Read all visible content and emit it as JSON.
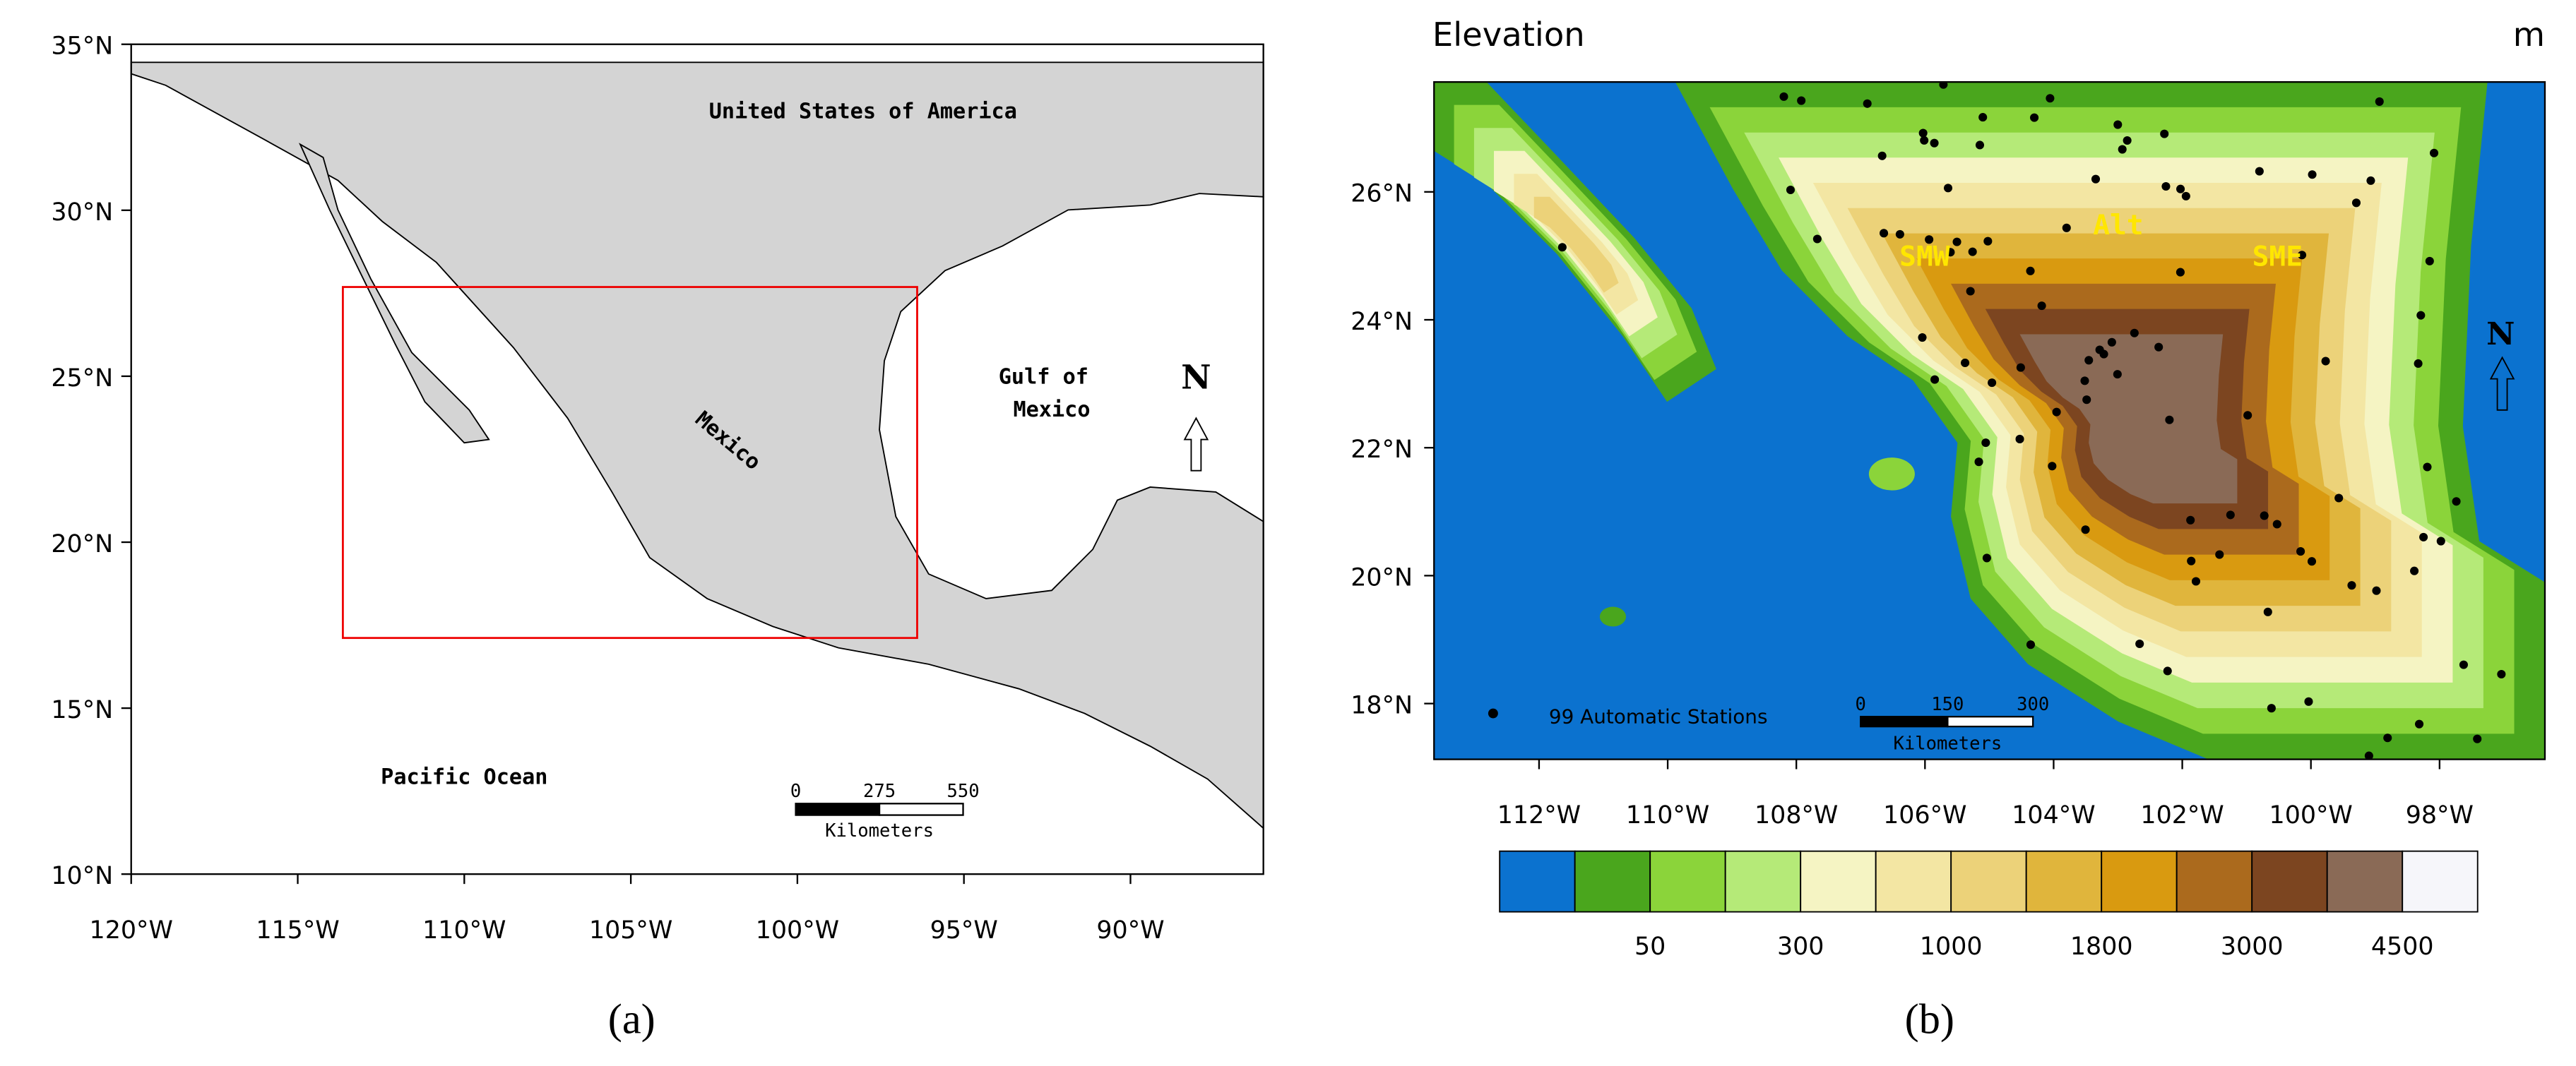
{
  "panel_a": {
    "label": "(a)",
    "lat_ticks": [
      "35°N",
      "30°N",
      "25°N",
      "20°N",
      "15°N",
      "10°N"
    ],
    "lon_ticks": [
      "120°W",
      "115°W",
      "110°W",
      "105°W",
      "100°W",
      "95°W",
      "90°W"
    ],
    "places": {
      "usa": "United States of America",
      "gulf": [
        "Gulf of",
        "Mexico"
      ],
      "mexico": "Mexico",
      "pacific": "Pacific Ocean"
    },
    "north": "N",
    "scale_bar": {
      "ticks": [
        "0",
        "275",
        "550"
      ],
      "unit": "Kilometers"
    }
  },
  "panel_b": {
    "label": "(b)",
    "title": "Elevation",
    "unit": "m",
    "lat_ticks": [
      "26°N",
      "24°N",
      "22°N",
      "20°N",
      "18°N"
    ],
    "lon_ticks": [
      "112°W",
      "110°W",
      "108°W",
      "106°W",
      "104°W",
      "102°W",
      "100°W",
      "98°W"
    ],
    "regions": [
      "SMW",
      "Alt",
      "SME"
    ],
    "north": "N",
    "stations": "99 Automatic Stations",
    "scale_bar": {
      "ticks": [
        "0",
        "150",
        "300"
      ],
      "unit": "Kilometers"
    },
    "colorbar": {
      "colors": [
        "#0b72cf",
        "#4aa61d",
        "#8bd43a",
        "#b5ea78",
        "#f5f4c3",
        "#f3e6a3",
        "#ecd279",
        "#e0b53c",
        "#d99a10",
        "#ab6a1d",
        "#7c4520",
        "#8a6a56",
        "#f6f6fa"
      ],
      "labels": [
        "50",
        "300",
        "1000",
        "1800",
        "3000",
        "4500"
      ]
    }
  }
}
